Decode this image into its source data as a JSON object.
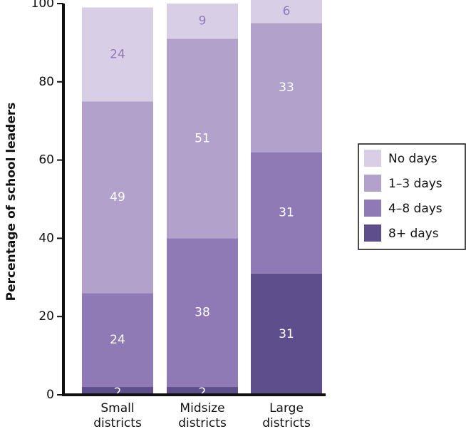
{
  "chart_data": {
    "type": "bar",
    "stacked": true,
    "categories": [
      [
        "Small",
        "districts"
      ],
      [
        "Midsize",
        "districts"
      ],
      [
        "Large",
        "districts"
      ]
    ],
    "ylabel": "Percentage of school leaders",
    "ylim": [
      0,
      100
    ],
    "yticks": [
      "0",
      "20",
      "40",
      "60",
      "80",
      "100"
    ],
    "legend_position": "right",
    "series": [
      {
        "name": "8+ days",
        "color": "#5e4f8c",
        "label_color": "#ffffff",
        "values": [
          2,
          2,
          31
        ],
        "labels": [
          "2",
          "2",
          "31"
        ]
      },
      {
        "name": "4–8 days",
        "color": "#8f7ab6",
        "label_color": "#ffffff",
        "values": [
          24,
          38,
          31
        ],
        "labels": [
          "24",
          "38",
          "31"
        ]
      },
      {
        "name": "1–3 days",
        "color": "#b2a2cb",
        "label_color": "#ffffff",
        "values": [
          49,
          51,
          33
        ],
        "labels": [
          "49",
          "51",
          "33"
        ]
      },
      {
        "name": "No days",
        "color": "#d8cfe6",
        "label_color": "#8f7ab6",
        "values": [
          24,
          9,
          6
        ],
        "labels": [
          "24",
          "9",
          "6"
        ]
      }
    ]
  }
}
